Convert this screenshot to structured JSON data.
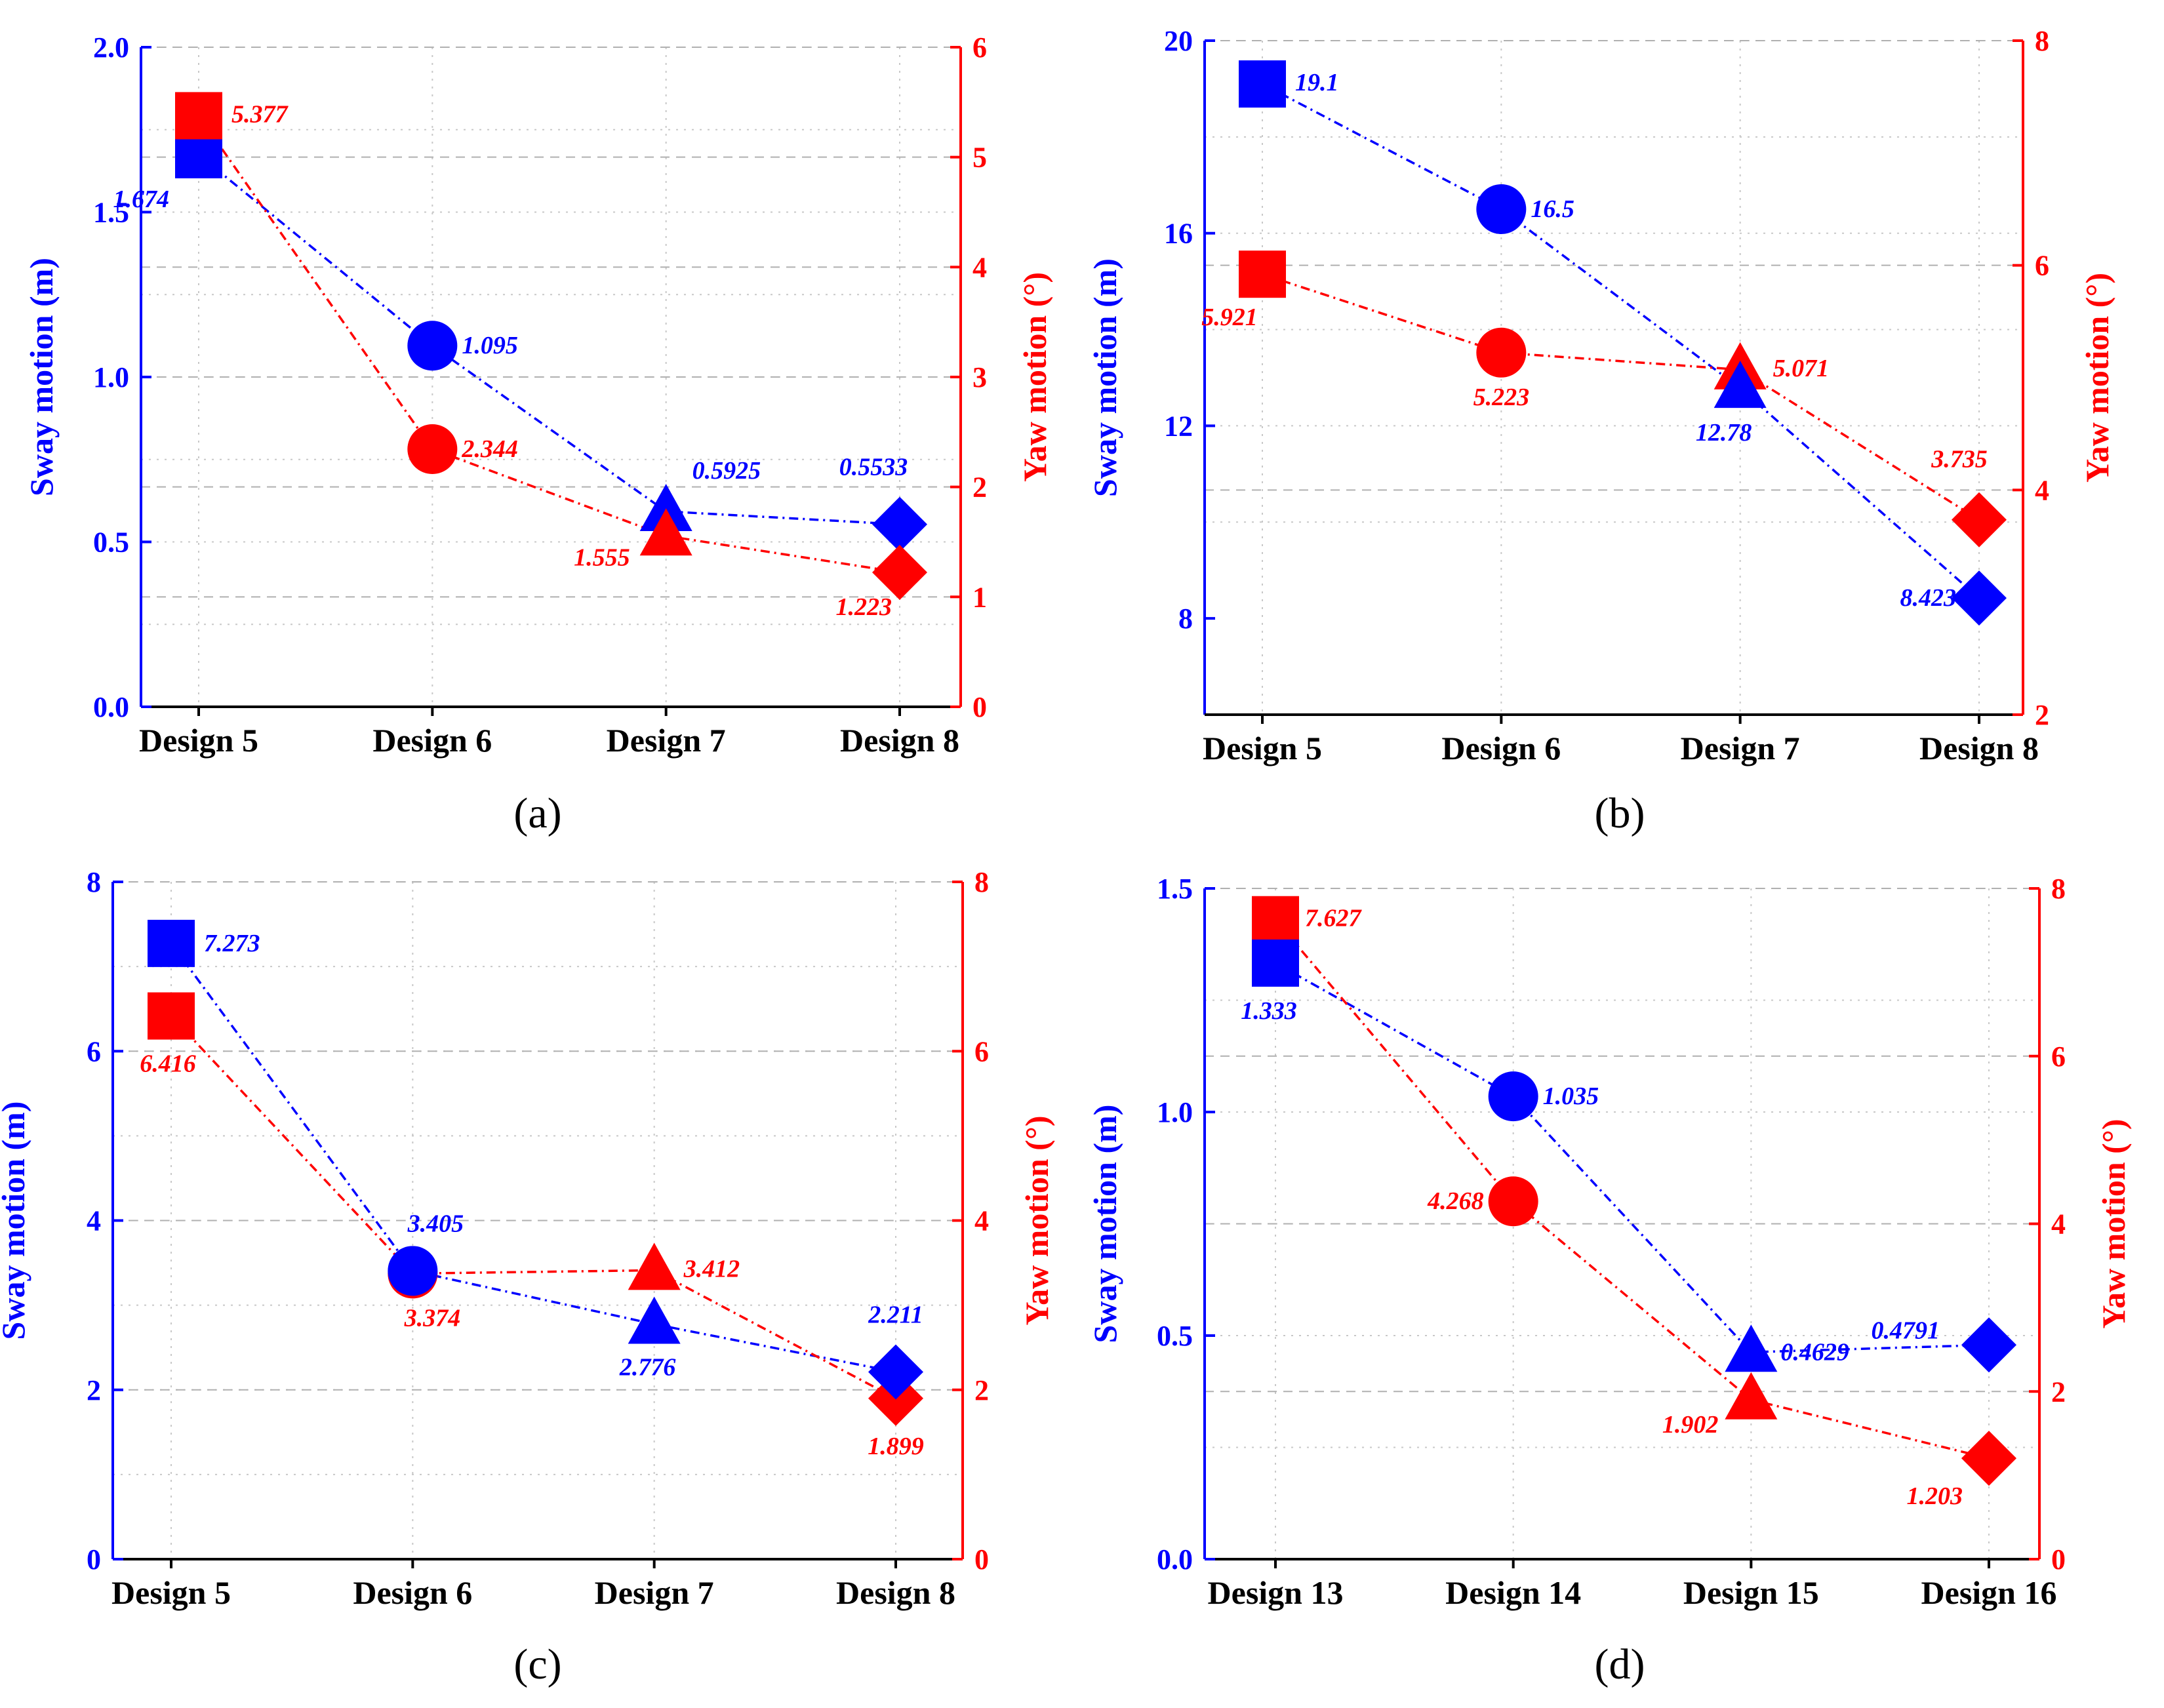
{
  "colors": {
    "sway": "#0000ff",
    "yaw": "#ff0000",
    "axis": "#000000",
    "grid": "#c8c8c8"
  },
  "chart_data": [
    {
      "type": "line",
      "caption": "(a)",
      "categories": [
        "Design 5",
        "Design 6",
        "Design 7",
        "Design 8"
      ],
      "markers": [
        "square",
        "circle",
        "triangle",
        "diamond"
      ],
      "y_left": {
        "label": "Sway motion (m)",
        "lim": [
          0,
          2.0
        ],
        "ticks": [
          "0.0",
          "0.5",
          "1.0",
          "1.5",
          "2.0"
        ],
        "tick_values": [
          0,
          0.5,
          1.0,
          1.5,
          2.0
        ]
      },
      "y_right": {
        "label": "Yaw motion (°)",
        "lim": [
          0,
          6
        ],
        "ticks": [
          "0",
          "1",
          "2",
          "3",
          "4",
          "5",
          "6"
        ],
        "tick_values": [
          0,
          1,
          2,
          3,
          4,
          5,
          6
        ]
      },
      "series": [
        {
          "name": "Sway motion (m)",
          "axis": "left",
          "values": [
            1.674,
            1.095,
            0.5925,
            0.5533
          ],
          "labels": [
            "1.674",
            "1.095",
            "0.5925",
            "0.5533"
          ]
        },
        {
          "name": "Yaw motion (°)",
          "axis": "right",
          "values": [
            5.377,
            2.344,
            1.555,
            1.223
          ],
          "labels": [
            "5.377",
            "2.344",
            "1.555",
            "1.223"
          ]
        }
      ]
    },
    {
      "type": "line",
      "caption": "(b)",
      "categories": [
        "Design 5",
        "Design 6",
        "Design 7",
        "Design 8"
      ],
      "markers": [
        "square",
        "circle",
        "triangle",
        "diamond"
      ],
      "y_left": {
        "label": "Sway motion (m)",
        "lim": [
          6,
          20
        ],
        "ticks": [
          "8",
          "12",
          "16",
          "20"
        ],
        "tick_values": [
          8,
          12,
          16,
          20
        ]
      },
      "y_right": {
        "label": "Yaw motion (°)",
        "lim": [
          2,
          8
        ],
        "ticks": [
          "2",
          "4",
          "6",
          "8"
        ],
        "tick_values": [
          2,
          4,
          6,
          8
        ]
      },
      "series": [
        {
          "name": "Sway motion (m)",
          "axis": "left",
          "values": [
            19.1,
            16.5,
            12.78,
            8.423
          ],
          "labels": [
            "19.1",
            "16.5",
            "12.78",
            "8.423"
          ]
        },
        {
          "name": "Yaw motion (°)",
          "axis": "right",
          "values": [
            5.921,
            5.223,
            5.071,
            3.735
          ],
          "labels": [
            "5.921",
            "5.223",
            "5.071",
            "3.735"
          ]
        }
      ]
    },
    {
      "type": "line",
      "caption": "(c)",
      "categories": [
        "Design 5",
        "Design 6",
        "Design 7",
        "Design 8"
      ],
      "markers": [
        "square",
        "circle",
        "triangle",
        "diamond"
      ],
      "y_left": {
        "label": "Sway motion (m)",
        "lim": [
          0,
          8
        ],
        "ticks": [
          "0",
          "2",
          "4",
          "6",
          "8"
        ],
        "tick_values": [
          0,
          2,
          4,
          6,
          8
        ]
      },
      "y_right": {
        "label": "Yaw motion (°)",
        "lim": [
          0,
          8
        ],
        "ticks": [
          "0",
          "2",
          "4",
          "6",
          "8"
        ],
        "tick_values": [
          0,
          2,
          4,
          6,
          8
        ]
      },
      "series": [
        {
          "name": "Sway motion (m)",
          "axis": "left",
          "values": [
            7.273,
            3.405,
            2.776,
            2.211
          ],
          "labels": [
            "7.273",
            "3.405",
            "2.776",
            "2.211"
          ]
        },
        {
          "name": "Yaw motion (°)",
          "axis": "right",
          "values": [
            6.416,
            3.374,
            3.412,
            1.899
          ],
          "labels": [
            "6.416",
            "3.374",
            "3.412",
            "1.899"
          ]
        }
      ]
    },
    {
      "type": "line",
      "caption": "(d)",
      "categories": [
        "Design 13",
        "Design 14",
        "Design 15",
        "Design 16"
      ],
      "markers": [
        "square",
        "circle",
        "triangle",
        "diamond"
      ],
      "y_left": {
        "label": "Sway motion (m)",
        "lim": [
          0,
          1.5
        ],
        "ticks": [
          "0.0",
          "0.5",
          "1.0",
          "1.5"
        ],
        "tick_values": [
          0,
          0.5,
          1.0,
          1.5
        ]
      },
      "y_right": {
        "label": "Yaw motion (°)",
        "lim": [
          0,
          8
        ],
        "ticks": [
          "0",
          "2",
          "4",
          "6",
          "8"
        ],
        "tick_values": [
          0,
          2,
          4,
          6,
          8
        ]
      },
      "series": [
        {
          "name": "Sway motion (m)",
          "axis": "left",
          "values": [
            1.333,
            1.035,
            0.4629,
            0.4791
          ],
          "labels": [
            "1.333",
            "1.035",
            "0.4629",
            "0.4791"
          ]
        },
        {
          "name": "Yaw motion (°)",
          "axis": "right",
          "values": [
            7.627,
            4.268,
            1.902,
            1.203
          ],
          "labels": [
            "7.627",
            "4.268",
            "1.902",
            "1.203"
          ]
        }
      ]
    }
  ]
}
